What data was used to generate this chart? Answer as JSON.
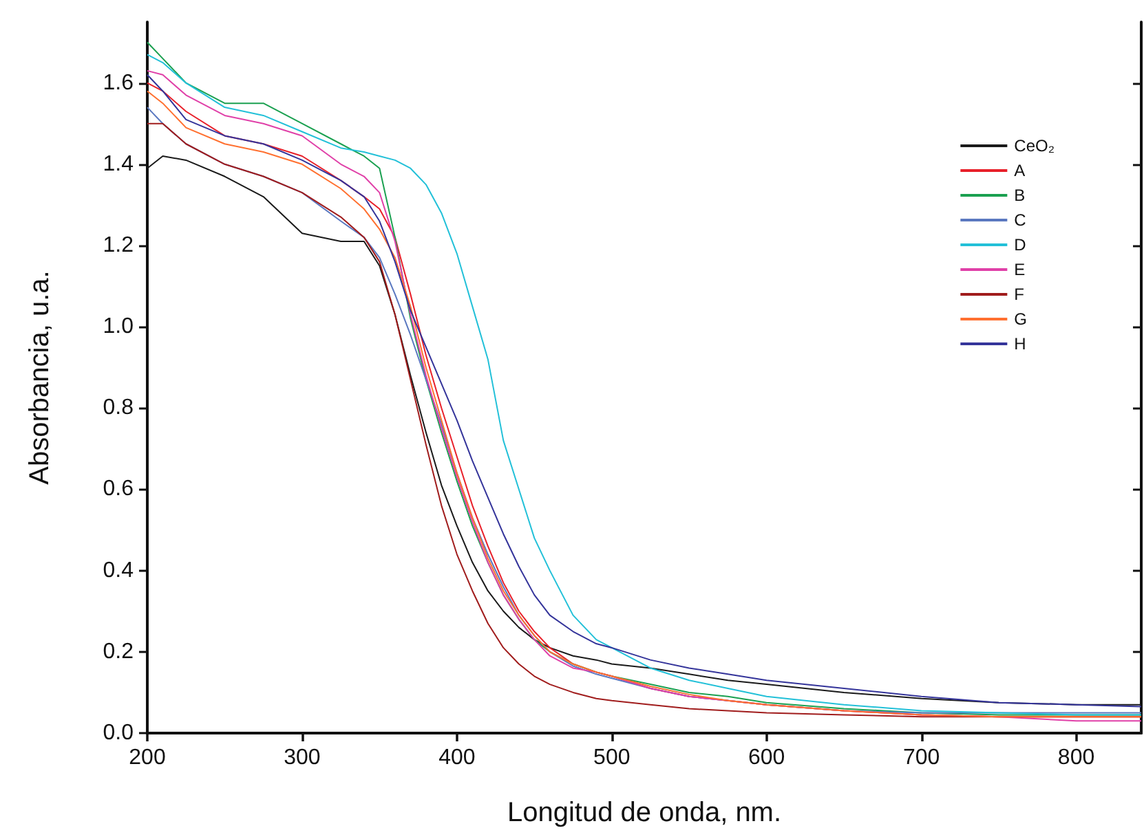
{
  "chart_data": {
    "type": "line",
    "xlabel": "Longitud de onda, nm.",
    "ylabel": "Absorbancia, u.a.",
    "x": [
      200,
      210,
      225,
      250,
      275,
      300,
      325,
      340,
      350,
      360,
      370,
      380,
      390,
      400,
      410,
      420,
      430,
      440,
      450,
      460,
      475,
      490,
      500,
      525,
      550,
      575,
      600,
      650,
      700,
      750,
      800,
      842
    ],
    "xlim": [
      200,
      842
    ],
    "xticks": [
      200,
      300,
      400,
      500,
      600,
      700,
      800
    ],
    "ylim": [
      0,
      1.75
    ],
    "yticks": [
      {
        "value": 0,
        "label": "0.0"
      },
      0.2,
      0.4,
      0.6,
      0.8,
      {
        "value": 1,
        "label": "1.0"
      },
      1.2,
      1.4,
      1.6
    ],
    "grid": false,
    "legend": "top right",
    "marker": "none",
    "line_style": "solid",
    "series": [
      {
        "name": "CeO₂",
        "color": "#1a1a1a",
        "values": [
          1.39,
          1.42,
          1.41,
          1.37,
          1.32,
          1.23,
          1.21,
          1.21,
          1.15,
          1.03,
          0.88,
          0.74,
          0.61,
          0.51,
          0.42,
          0.35,
          0.3,
          0.26,
          0.23,
          0.21,
          0.19,
          0.18,
          0.17,
          0.16,
          0.145,
          0.13,
          0.12,
          0.1,
          0.085,
          0.075,
          0.07,
          0.07
        ]
      },
      {
        "name": "A",
        "color": "#e8202a",
        "values": [
          1.6,
          1.58,
          1.53,
          1.47,
          1.45,
          1.42,
          1.36,
          1.32,
          1.29,
          1.22,
          1.08,
          0.93,
          0.8,
          0.68,
          0.56,
          0.46,
          0.37,
          0.3,
          0.25,
          0.21,
          0.17,
          0.15,
          0.14,
          0.11,
          0.09,
          0.08,
          0.07,
          0.055,
          0.045,
          0.04,
          0.04,
          0.04
        ]
      },
      {
        "name": "B",
        "color": "#1aa050",
        "values": [
          1.7,
          1.66,
          1.6,
          1.55,
          1.55,
          1.5,
          1.45,
          1.42,
          1.39,
          1.22,
          1.02,
          0.87,
          0.74,
          0.62,
          0.51,
          0.42,
          0.34,
          0.28,
          0.23,
          0.2,
          0.17,
          0.15,
          0.14,
          0.12,
          0.1,
          0.09,
          0.075,
          0.06,
          0.05,
          0.045,
          0.045,
          0.045
        ]
      },
      {
        "name": "C",
        "color": "#5a78c0",
        "values": [
          1.54,
          1.5,
          1.45,
          1.4,
          1.37,
          1.33,
          1.26,
          1.22,
          1.17,
          1.08,
          0.98,
          0.87,
          0.76,
          0.64,
          0.53,
          0.44,
          0.36,
          0.29,
          0.24,
          0.2,
          0.165,
          0.145,
          0.135,
          0.11,
          0.09,
          0.08,
          0.07,
          0.055,
          0.05,
          0.05,
          0.05,
          0.05
        ]
      },
      {
        "name": "D",
        "color": "#22c0d8",
        "values": [
          1.67,
          1.65,
          1.6,
          1.54,
          1.52,
          1.48,
          1.44,
          1.43,
          1.42,
          1.41,
          1.39,
          1.35,
          1.28,
          1.18,
          1.05,
          0.92,
          0.72,
          0.6,
          0.48,
          0.4,
          0.29,
          0.23,
          0.21,
          0.16,
          0.13,
          0.11,
          0.09,
          0.07,
          0.055,
          0.05,
          0.045,
          0.045
        ]
      },
      {
        "name": "E",
        "color": "#e040a8",
        "values": [
          1.63,
          1.62,
          1.57,
          1.52,
          1.5,
          1.47,
          1.4,
          1.37,
          1.33,
          1.21,
          1.03,
          0.88,
          0.75,
          0.63,
          0.52,
          0.42,
          0.34,
          0.28,
          0.23,
          0.19,
          0.16,
          0.15,
          0.14,
          0.11,
          0.09,
          0.08,
          0.07,
          0.055,
          0.045,
          0.04,
          0.03,
          0.03
        ]
      },
      {
        "name": "F",
        "color": "#a01c1c",
        "values": [
          1.5,
          1.5,
          1.45,
          1.4,
          1.37,
          1.33,
          1.27,
          1.22,
          1.16,
          1.03,
          0.87,
          0.71,
          0.56,
          0.44,
          0.35,
          0.27,
          0.21,
          0.17,
          0.14,
          0.12,
          0.1,
          0.085,
          0.08,
          0.07,
          0.06,
          0.055,
          0.05,
          0.045,
          0.04,
          0.04,
          0.04,
          0.04
        ]
      },
      {
        "name": "G",
        "color": "#ff7030",
        "values": [
          1.58,
          1.55,
          1.49,
          1.45,
          1.43,
          1.4,
          1.34,
          1.29,
          1.24,
          1.17,
          1.05,
          0.9,
          0.77,
          0.64,
          0.53,
          0.43,
          0.35,
          0.29,
          0.24,
          0.2,
          0.17,
          0.15,
          0.14,
          0.115,
          0.095,
          0.08,
          0.07,
          0.055,
          0.045,
          0.04,
          0.04,
          0.04
        ]
      },
      {
        "name": "H",
        "color": "#34349a",
        "values": [
          1.62,
          1.58,
          1.51,
          1.47,
          1.45,
          1.41,
          1.36,
          1.32,
          1.26,
          1.16,
          1.04,
          0.95,
          0.86,
          0.77,
          0.67,
          0.58,
          0.49,
          0.41,
          0.34,
          0.29,
          0.25,
          0.22,
          0.21,
          0.18,
          0.16,
          0.145,
          0.13,
          0.11,
          0.09,
          0.075,
          0.07,
          0.065
        ]
      }
    ]
  }
}
